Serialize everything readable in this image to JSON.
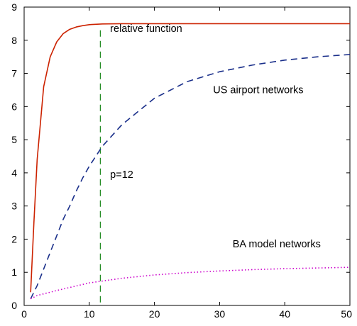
{
  "chart_data": {
    "type": "line",
    "title": "",
    "xlabel": "",
    "ylabel": "",
    "xlim": [
      0,
      50
    ],
    "ylim": [
      0,
      9
    ],
    "grid": false,
    "x_ticks": [
      "0",
      "10",
      "20",
      "30",
      "40",
      "50"
    ],
    "y_ticks": [
      "0",
      "1",
      "2",
      "3",
      "4",
      "5",
      "6",
      "7",
      "8",
      "9"
    ],
    "series": [
      {
        "color": "#cc2200",
        "style": "solid",
        "x": [
          1,
          1.5,
          2,
          3,
          4,
          5,
          6,
          7,
          8,
          9,
          10,
          12,
          15,
          20,
          30,
          40,
          50
        ],
        "y": [
          0.4,
          2.5,
          4.4,
          6.6,
          7.5,
          7.95,
          8.2,
          8.33,
          8.4,
          8.44,
          8.47,
          8.49,
          8.5,
          8.5,
          8.5,
          8.5,
          8.5
        ]
      },
      {
        "color": "#1a2f8a",
        "style": "dashed",
        "x": [
          1,
          2,
          3,
          4,
          5,
          6,
          7,
          8,
          9,
          10,
          12,
          15,
          20,
          25,
          30,
          35,
          40,
          45,
          50
        ],
        "y": [
          0.2,
          0.6,
          1.1,
          1.6,
          2.1,
          2.6,
          3.0,
          3.45,
          3.85,
          4.2,
          4.8,
          5.45,
          6.25,
          6.75,
          7.05,
          7.25,
          7.4,
          7.5,
          7.57
        ]
      },
      {
        "color": "#cc00cc",
        "style": "dotted",
        "x": [
          1,
          2,
          5,
          10,
          15,
          20,
          25,
          30,
          35,
          40,
          45,
          50
        ],
        "y": [
          0.2,
          0.3,
          0.45,
          0.68,
          0.82,
          0.92,
          0.99,
          1.04,
          1.08,
          1.11,
          1.13,
          1.15
        ]
      }
    ],
    "vline": {
      "x": 11.7,
      "color": "#228b22",
      "style": "dashed"
    },
    "annotations": [
      {
        "text": "relative function",
        "x": 13.2,
        "y": 8.25
      },
      {
        "text": "US airport networks",
        "x": 29,
        "y": 6.4
      },
      {
        "text": "p=12",
        "x": 13.2,
        "y": 3.85
      },
      {
        "text": "BA model networks",
        "x": 32,
        "y": 1.75
      }
    ]
  }
}
